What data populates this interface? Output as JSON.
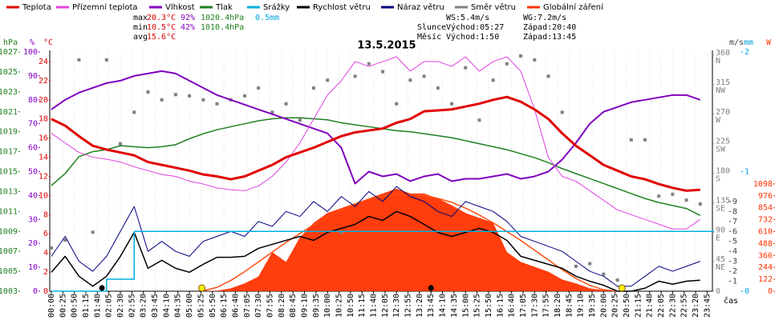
{
  "chart_data": {
    "type": "line",
    "title": "13.5.2015",
    "x_label": "čas",
    "stats": [
      {
        "label": "max",
        "parts": [
          "20.3°C",
          "92%",
          "1020.4hPa",
          "0.5mm"
        ]
      },
      {
        "label": "min",
        "parts": [
          "10.5°C",
          "42%",
          "1010.4hPa"
        ]
      },
      {
        "label": "avg",
        "parts": [
          "15.6°C"
        ]
      }
    ],
    "info": [
      {
        "label": "",
        "parts": [
          "WS:5.4m/s",
          "WG:7.2m/s"
        ]
      },
      {
        "label": "Slunce",
        "parts": [
          "Východ:05:27",
          "Západ:20:40"
        ]
      },
      {
        "label": "Měsíc",
        "parts": [
          "Východ:1:50",
          "Západ:13:45"
        ]
      }
    ],
    "sun_marks": [
      "05:27",
      "20:40"
    ],
    "moon_marks": [
      "01:50",
      "13:45"
    ],
    "xlim": [
      "00:00",
      "24:00"
    ],
    "xticks": [
      "00:00",
      "00:25",
      "00:50",
      "01:15",
      "01:40",
      "02:05",
      "02:30",
      "02:55",
      "03:20",
      "03:45",
      "04:10",
      "04:35",
      "05:00",
      "05:25",
      "05:50",
      "06:15",
      "06:40",
      "07:05",
      "07:30",
      "07:55",
      "08:20",
      "08:45",
      "09:10",
      "09:35",
      "10:00",
      "10:25",
      "10:50",
      "11:15",
      "11:40",
      "12:05",
      "12:30",
      "12:55",
      "13:20",
      "13:45",
      "14:10",
      "14:35",
      "15:00",
      "15:25",
      "15:50",
      "16:15",
      "16:40",
      "17:05",
      "17:30",
      "17:55",
      "18:20",
      "18:45",
      "19:10",
      "19:35",
      "20:00",
      "20:25",
      "20:50",
      "21:15",
      "21:40",
      "22:05",
      "22:30",
      "22:55",
      "23:20",
      "23:45"
    ],
    "x": [
      "00:00",
      "00:30",
      "01:00",
      "01:30",
      "02:00",
      "02:30",
      "03:00",
      "03:30",
      "04:00",
      "04:30",
      "05:00",
      "05:30",
      "06:00",
      "06:30",
      "07:00",
      "07:30",
      "08:00",
      "08:30",
      "09:00",
      "09:30",
      "10:00",
      "10:30",
      "11:00",
      "11:30",
      "12:00",
      "12:30",
      "13:00",
      "13:30",
      "14:00",
      "14:30",
      "15:00",
      "15:30",
      "16:00",
      "16:30",
      "17:00",
      "17:30",
      "18:00",
      "18:30",
      "19:00",
      "19:30",
      "20:00",
      "20:30",
      "21:00",
      "21:30",
      "22:00",
      "22:30",
      "23:00",
      "23:30"
    ],
    "axes": [
      {
        "label": "hPa",
        "color": "#208020",
        "ylim": [
          1003,
          1027
        ],
        "yticks": [
          1003,
          1005,
          1007,
          1009,
          1011,
          1013,
          1015,
          1017,
          1019,
          1021,
          1023,
          1025,
          1027
        ]
      },
      {
        "label": "%",
        "color": "#8000c0",
        "ylim": [
          0,
          100
        ],
        "yticks": [
          0,
          10,
          20,
          30,
          40,
          50,
          60,
          70,
          80,
          90,
          100
        ]
      },
      {
        "label": "°C",
        "color": "#e00000",
        "ylim": [
          0,
          25
        ],
        "yticks": [
          0,
          2,
          4,
          6,
          8,
          10,
          12,
          14,
          16,
          18,
          20,
          22,
          24
        ]
      },
      {
        "color": "#808080",
        "ylim": [
          0,
          365
        ],
        "yticks": [
          0,
          {
            "value": 45,
            "label": "45 NE"
          },
          {
            "value": 90,
            "label": "90 E"
          },
          {
            "value": 135,
            "label": "135 SE"
          },
          {
            "value": 180,
            "label": "180 S"
          },
          {
            "value": 225,
            "label": "225 SW"
          },
          {
            "value": 270,
            "label": "270 W"
          },
          {
            "value": 315,
            "label": "315 NW"
          },
          {
            "value": 360,
            "label": "360 N"
          }
        ]
      },
      {
        "label": "m/s",
        "color": "#404040",
        "ylim": [
          0,
          24
        ],
        "yticks": [
          1,
          2,
          3,
          4,
          5,
          6,
          7,
          8,
          9
        ]
      },
      {
        "label": "mm",
        "color": "#00a0e0",
        "ylim": [
          0,
          2
        ],
        "yticks": [
          0,
          1,
          2
        ]
      },
      {
        "label": "W",
        "color": "#ff3300",
        "ylim": [
          0,
          2448
        ],
        "yticks": [
          0,
          122,
          244,
          366,
          488,
          610,
          732,
          854,
          976,
          1098
        ]
      }
    ],
    "series": [
      {
        "name": "Teplota",
        "type": "line",
        "axis": 2,
        "color": "#e00000",
        "values": [
          18,
          17.3,
          16.2,
          15.2,
          14.8,
          14.5,
          14.2,
          13.5,
          13.2,
          12.9,
          12.6,
          12.2,
          12.0,
          11.7,
          12.0,
          12.6,
          13.2,
          14.0,
          14.5,
          15.0,
          15.6,
          16.2,
          16.6,
          16.8,
          17.0,
          17.6,
          18.0,
          18.8,
          18.9,
          19.0,
          19.3,
          19.6,
          20.0,
          20.3,
          19.8,
          19.0,
          18.0,
          16.5,
          15.2,
          14.2,
          13.2,
          12.6,
          12.0,
          11.7,
          11.2,
          10.8,
          10.5,
          10.6
        ]
      },
      {
        "name": "Přízemní teplota",
        "type": "line",
        "axis": 2,
        "color": "#e040e0",
        "values": [
          16.5,
          15.5,
          14.5,
          14,
          13.8,
          13.5,
          13,
          12.6,
          12.2,
          12,
          11.5,
          11.2,
          10.8,
          10.6,
          10.5,
          11,
          12,
          13.5,
          15.5,
          18,
          20.5,
          22,
          24,
          23.5,
          24,
          24.5,
          23,
          24,
          24,
          23.5,
          24.5,
          23,
          24,
          24.5,
          23,
          19,
          14,
          12,
          11.5,
          10.5,
          9.5,
          8.5,
          8,
          7.5,
          7,
          6.5,
          6.5,
          7.5
        ]
      },
      {
        "name": "Vlhkost",
        "type": "line",
        "axis": 1,
        "color": "#8000c0",
        "values": [
          76,
          80,
          83,
          85,
          87,
          88,
          90,
          91,
          92,
          91,
          88,
          85,
          82,
          80,
          78,
          76,
          74,
          72,
          70,
          68,
          66,
          60,
          45,
          50,
          48,
          49,
          46,
          48,
          49,
          46,
          47,
          47,
          48,
          49,
          47,
          48,
          50,
          55,
          62,
          70,
          75,
          77,
          79,
          80,
          81,
          82,
          82,
          80
        ]
      },
      {
        "name": "Tlak",
        "type": "line",
        "axis": 0,
        "color": "#208020",
        "values": [
          1013.6,
          1014.8,
          1016.5,
          1017.0,
          1017.2,
          1017.6,
          1017.5,
          1017.4,
          1017.5,
          1017.7,
          1018.3,
          1018.8,
          1019.2,
          1019.5,
          1019.8,
          1020.1,
          1020.3,
          1020.4,
          1020.4,
          1020.3,
          1020.2,
          1019.9,
          1019.7,
          1019.5,
          1019.3,
          1019.1,
          1019.0,
          1018.8,
          1018.6,
          1018.4,
          1018.1,
          1017.8,
          1017.5,
          1017.2,
          1016.8,
          1016.4,
          1015.9,
          1015.3,
          1014.8,
          1014.3,
          1013.8,
          1013.3,
          1012.8,
          1012.3,
          1011.9,
          1011.6,
          1011.3,
          1010.6
        ]
      },
      {
        "name": "Srážky",
        "type": "step",
        "axis": 5,
        "color": "#00b0e0",
        "values": [
          0,
          0,
          0,
          0,
          0.1,
          0.1,
          0.5,
          0.5,
          0.5,
          0.5,
          0.5,
          0.5,
          0.5,
          0.5,
          0.5,
          0.5,
          0.5,
          0.5,
          0.5,
          0.5,
          0.5,
          0.5,
          0.5,
          0.5,
          0.5,
          0.5,
          0.5,
          0.5,
          0.5,
          0.5,
          0.5,
          0.5,
          0.5,
          0.5,
          0.5,
          0.5,
          0.5,
          0.5,
          0.5,
          0.5,
          0.5,
          0.5,
          0.5,
          0.5,
          0.5,
          0.5,
          0.5,
          0.5
        ]
      },
      {
        "name": "Rychlost větru",
        "type": "line",
        "axis": 4,
        "color": "#000000",
        "values": [
          1.9,
          3.5,
          1.5,
          0.5,
          1.5,
          3.5,
          5.9,
          2.3,
          3.1,
          2.3,
          1.9,
          2.7,
          3.4,
          3.4,
          3.5,
          4.3,
          4.7,
          5.1,
          5.5,
          5.1,
          5.9,
          6.3,
          6.7,
          7.5,
          7.1,
          8.0,
          7.5,
          6.7,
          5.9,
          5.5,
          5.9,
          6.3,
          5.9,
          5.1,
          3.5,
          3.1,
          2.7,
          2.3,
          1.5,
          1.0,
          0.6,
          0,
          0,
          0.3,
          1.0,
          0.7,
          1.0,
          1.1
        ]
      },
      {
        "name": "Náraz větru",
        "type": "line",
        "axis": 4,
        "color": "#000080",
        "values": [
          3.5,
          5.5,
          3,
          2,
          3.5,
          6,
          8.5,
          4,
          5,
          4,
          3.5,
          5,
          5.5,
          6,
          5.5,
          7,
          6.5,
          8,
          7.5,
          9,
          8,
          9.5,
          8.5,
          10,
          9,
          10.5,
          9.5,
          9,
          8,
          7.5,
          9,
          8.5,
          8,
          7,
          5.5,
          5,
          4.5,
          4,
          3,
          2,
          1.5,
          0.5,
          0.5,
          1.5,
          2.5,
          2,
          2.5,
          3
        ]
      },
      {
        "name": "Směr větru",
        "type": "points",
        "axis": 3,
        "color": "#808080",
        "values": [
          66,
          78,
          353,
          90,
          353,
          225,
          273,
          304,
          292,
          300,
          298,
          292,
          286,
          292,
          298,
          310,
          273,
          286,
          261,
          310,
          322,
          90,
          328,
          347,
          335,
          286,
          322,
          328,
          310,
          286,
          341,
          261,
          322,
          347,
          359,
          353,
          328,
          273,
          38,
          42,
          26,
          17,
          231,
          231,
          145,
          148,
          139,
          133
        ]
      },
      {
        "type": "line",
        "axis": 6,
        "color": "#ff5010",
        "values": [
          null,
          null,
          null,
          null,
          null,
          null,
          null,
          null,
          null,
          null,
          null,
          5,
          40,
          110,
          200,
          300,
          400,
          500,
          590,
          680,
          760,
          830,
          890,
          940,
          970,
          990,
          990,
          980,
          950,
          910,
          850,
          780,
          700,
          610,
          520,
          420,
          320,
          220,
          130,
          60,
          15,
          0,
          null,
          null,
          null,
          null,
          null,
          null
        ]
      },
      {
        "name": "Globální záření",
        "type": "area",
        "axis": 6,
        "color": "#ff3300",
        "values": [
          0,
          0,
          0,
          0,
          0,
          0,
          0,
          0,
          0,
          0,
          0,
          0,
          5,
          30,
          80,
          150,
          400,
          300,
          550,
          700,
          800,
          850,
          900,
          950,
          1000,
          1050,
          1000,
          1000,
          950,
          880,
          800,
          750,
          700,
          400,
          300,
          250,
          200,
          120,
          80,
          30,
          10,
          0,
          0,
          0,
          0,
          0,
          0,
          0
        ]
      }
    ]
  }
}
